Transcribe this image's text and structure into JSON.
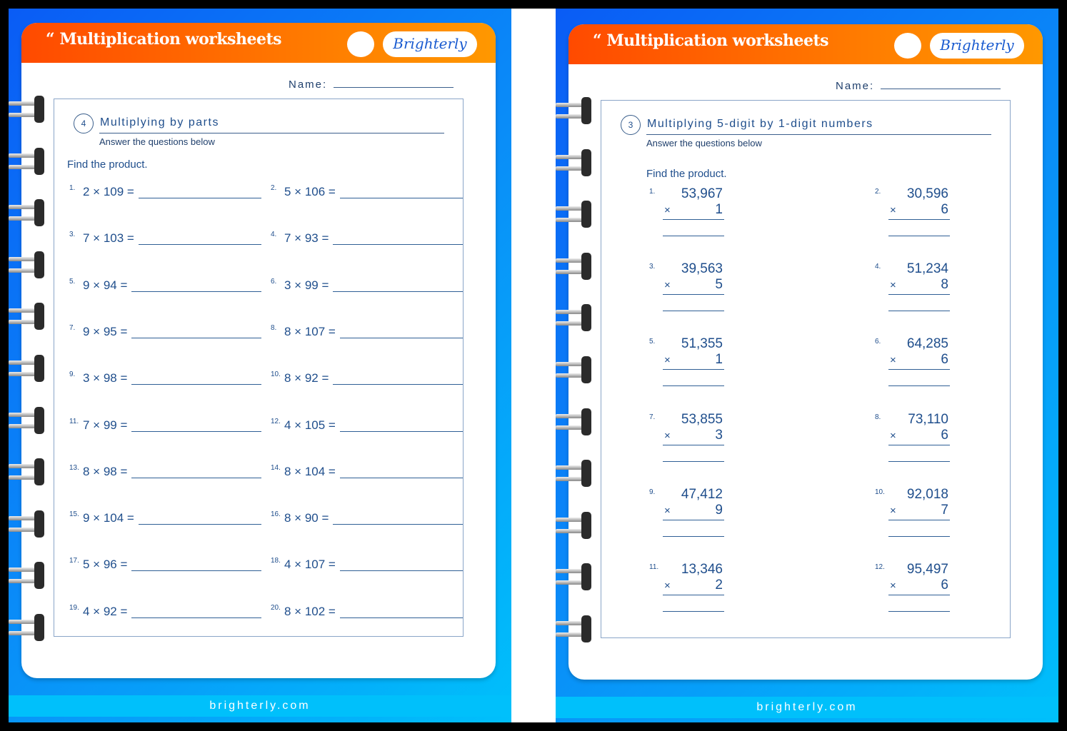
{
  "footer": "brighterly.com",
  "header_title": "Multiplication worksheets",
  "logo": "Brighterly",
  "name_label": "Name:",
  "left": {
    "section_number": "4",
    "section_title": "Multiplying by parts",
    "subtitle": "Answer the questions below",
    "instruction": "Find the product.",
    "problems": [
      {
        "n": "1.",
        "e": "2 × 109 ="
      },
      {
        "n": "2.",
        "e": "5 × 106 ="
      },
      {
        "n": "3.",
        "e": "7 × 103 ="
      },
      {
        "n": "4.",
        "e": "7 × 93 ="
      },
      {
        "n": "5.",
        "e": "9 × 94 ="
      },
      {
        "n": "6.",
        "e": "3 × 99 ="
      },
      {
        "n": "7.",
        "e": "9 × 95 ="
      },
      {
        "n": "8.",
        "e": "8 × 107 ="
      },
      {
        "n": "9.",
        "e": "3 × 98 ="
      },
      {
        "n": "10.",
        "e": "8 × 92 ="
      },
      {
        "n": "11.",
        "e": "7 × 99 ="
      },
      {
        "n": "12.",
        "e": "4 × 105 ="
      },
      {
        "n": "13.",
        "e": "8 × 98 ="
      },
      {
        "n": "14.",
        "e": "8 × 104 ="
      },
      {
        "n": "15.",
        "e": "9 × 104 ="
      },
      {
        "n": "16.",
        "e": "8 × 90 ="
      },
      {
        "n": "17.",
        "e": "5 × 96 ="
      },
      {
        "n": "18.",
        "e": "4 × 107 ="
      },
      {
        "n": "19.",
        "e": "4 × 92 ="
      },
      {
        "n": "20.",
        "e": "8 × 102 ="
      }
    ]
  },
  "right": {
    "section_number": "3",
    "section_title": "Multiplying 5-digit by 1-digit numbers",
    "subtitle": "Answer the questions below",
    "instruction": "Find the product.",
    "times_symbol": "×",
    "problems": [
      {
        "n": "1.",
        "a": "53,967",
        "b": "1"
      },
      {
        "n": "2.",
        "a": "30,596",
        "b": "6"
      },
      {
        "n": "3.",
        "a": "39,563",
        "b": "5"
      },
      {
        "n": "4.",
        "a": "51,234",
        "b": "8"
      },
      {
        "n": "5.",
        "a": "51,355",
        "b": "1"
      },
      {
        "n": "6.",
        "a": "64,285",
        "b": "6"
      },
      {
        "n": "7.",
        "a": "53,855",
        "b": "3"
      },
      {
        "n": "8.",
        "a": "73,110",
        "b": "6"
      },
      {
        "n": "9.",
        "a": "47,412",
        "b": "9"
      },
      {
        "n": "10.",
        "a": "92,018",
        "b": "7"
      },
      {
        "n": "11.",
        "a": "13,346",
        "b": "2"
      },
      {
        "n": "12.",
        "a": "95,497",
        "b": "6"
      }
    ]
  }
}
